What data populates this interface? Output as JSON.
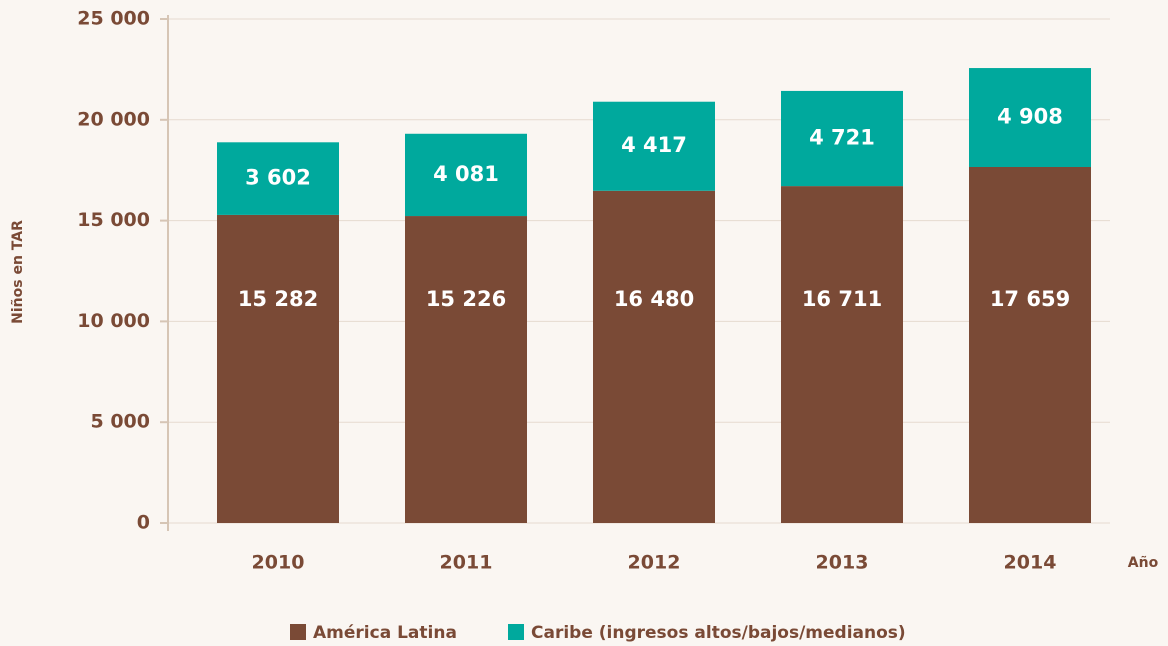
{
  "chart_data": {
    "type": "stacked-bar",
    "y_label": "Niños en TAR",
    "x_label": "Año",
    "categories": [
      "2010",
      "2011",
      "2012",
      "2013",
      "2014"
    ],
    "series": [
      {
        "name": "América Latina",
        "color": "#7a4a36",
        "values": [
          15282,
          15226,
          16480,
          16711,
          17659
        ],
        "value_labels": [
          "15 282",
          "15 226",
          "16 480",
          "16 711",
          "17 659"
        ]
      },
      {
        "name": "Caribe (ingresos altos/bajos/medianos)",
        "color": "#00a99d",
        "values": [
          3602,
          4081,
          4417,
          4721,
          4908
        ],
        "value_labels": [
          "3 602",
          "4 081",
          "4 417",
          "4 721",
          "4 908"
        ]
      }
    ],
    "ylim": [
      0,
      25000
    ],
    "yticks": [
      {
        "value": 0,
        "label": "0"
      },
      {
        "value": 5000,
        "label": "5 000"
      },
      {
        "value": 10000,
        "label": "10 000"
      },
      {
        "value": 15000,
        "label": "15 000"
      },
      {
        "value": 20000,
        "label": "20 000"
      },
      {
        "value": 25000,
        "label": "25 000"
      }
    ],
    "grid": true
  }
}
